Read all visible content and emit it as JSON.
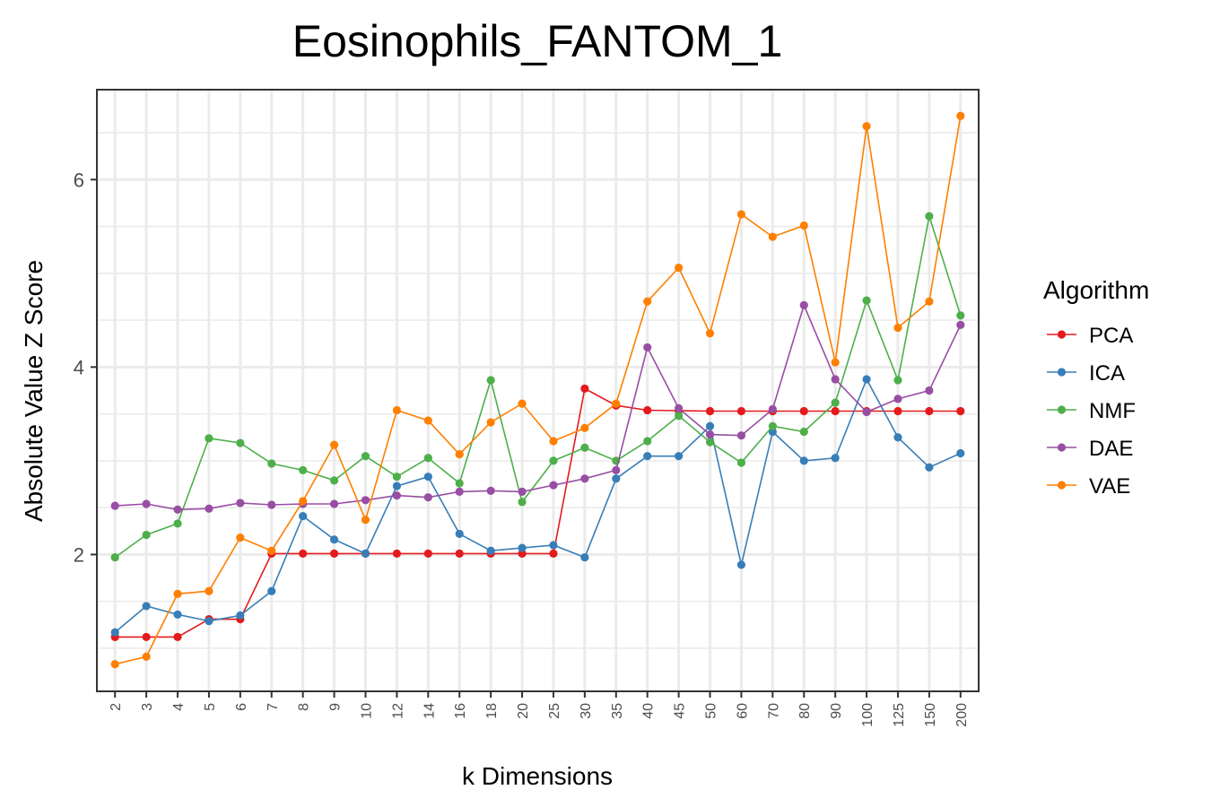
{
  "chart_data": {
    "type": "line",
    "title": "Eosinophils_FANTOM_1",
    "xlabel": "k Dimensions",
    "ylabel": "Absolute Value Z Score",
    "categories": [
      "2",
      "3",
      "4",
      "5",
      "6",
      "7",
      "8",
      "9",
      "10",
      "12",
      "14",
      "16",
      "18",
      "20",
      "25",
      "30",
      "35",
      "40",
      "45",
      "50",
      "60",
      "70",
      "80",
      "90",
      "100",
      "125",
      "150",
      "200"
    ],
    "yticks": [
      2,
      4,
      6
    ],
    "ylim": [
      0.55,
      6.95
    ],
    "grid": true,
    "legend": {
      "title": "Algorithm",
      "position": "right"
    },
    "series": [
      {
        "name": "PCA",
        "color": "#E41A1C",
        "values": [
          1.12,
          1.12,
          1.12,
          1.31,
          1.31,
          2.01,
          2.01,
          2.01,
          2.01,
          2.01,
          2.01,
          2.01,
          2.01,
          2.01,
          2.01,
          3.77,
          3.59,
          3.54,
          3.535,
          3.53,
          3.53,
          3.53,
          3.53,
          3.53,
          3.53,
          3.53,
          3.53,
          3.53
        ]
      },
      {
        "name": "ICA",
        "color": "#377EB8",
        "values": [
          1.17,
          1.45,
          1.36,
          1.29,
          1.35,
          1.61,
          2.41,
          2.16,
          2.01,
          2.73,
          2.83,
          2.22,
          2.04,
          2.07,
          2.1,
          1.97,
          2.81,
          3.05,
          3.05,
          3.37,
          1.89,
          3.31,
          3.0,
          3.03,
          3.87,
          3.25,
          2.93,
          3.08
        ]
      },
      {
        "name": "NMF",
        "color": "#4DAF4A",
        "values": [
          1.97,
          2.21,
          2.33,
          3.24,
          3.19,
          2.97,
          2.9,
          2.79,
          3.05,
          2.83,
          3.03,
          2.76,
          3.86,
          2.56,
          3.0,
          3.14,
          3.0,
          3.21,
          3.48,
          3.2,
          2.98,
          3.37,
          3.31,
          3.62,
          4.71,
          3.86,
          5.61,
          4.55
        ]
      },
      {
        "name": "DAE",
        "color": "#984EA3",
        "values": [
          2.52,
          2.54,
          2.48,
          2.49,
          2.55,
          2.53,
          2.54,
          2.54,
          2.58,
          2.63,
          2.61,
          2.67,
          2.68,
          2.67,
          2.74,
          2.81,
          2.9,
          4.21,
          3.56,
          3.28,
          3.27,
          3.55,
          4.66,
          3.87,
          3.52,
          3.66,
          3.75,
          4.45
        ]
      },
      {
        "name": "VAE",
        "color": "#FF7F00",
        "values": [
          0.83,
          0.91,
          1.58,
          1.61,
          2.18,
          2.04,
          2.57,
          3.17,
          2.37,
          3.54,
          3.43,
          3.07,
          3.41,
          3.61,
          3.21,
          3.35,
          3.61,
          4.7,
          5.06,
          4.36,
          5.63,
          5.39,
          5.51,
          4.05,
          6.57,
          4.42,
          4.7,
          6.68
        ]
      }
    ]
  }
}
